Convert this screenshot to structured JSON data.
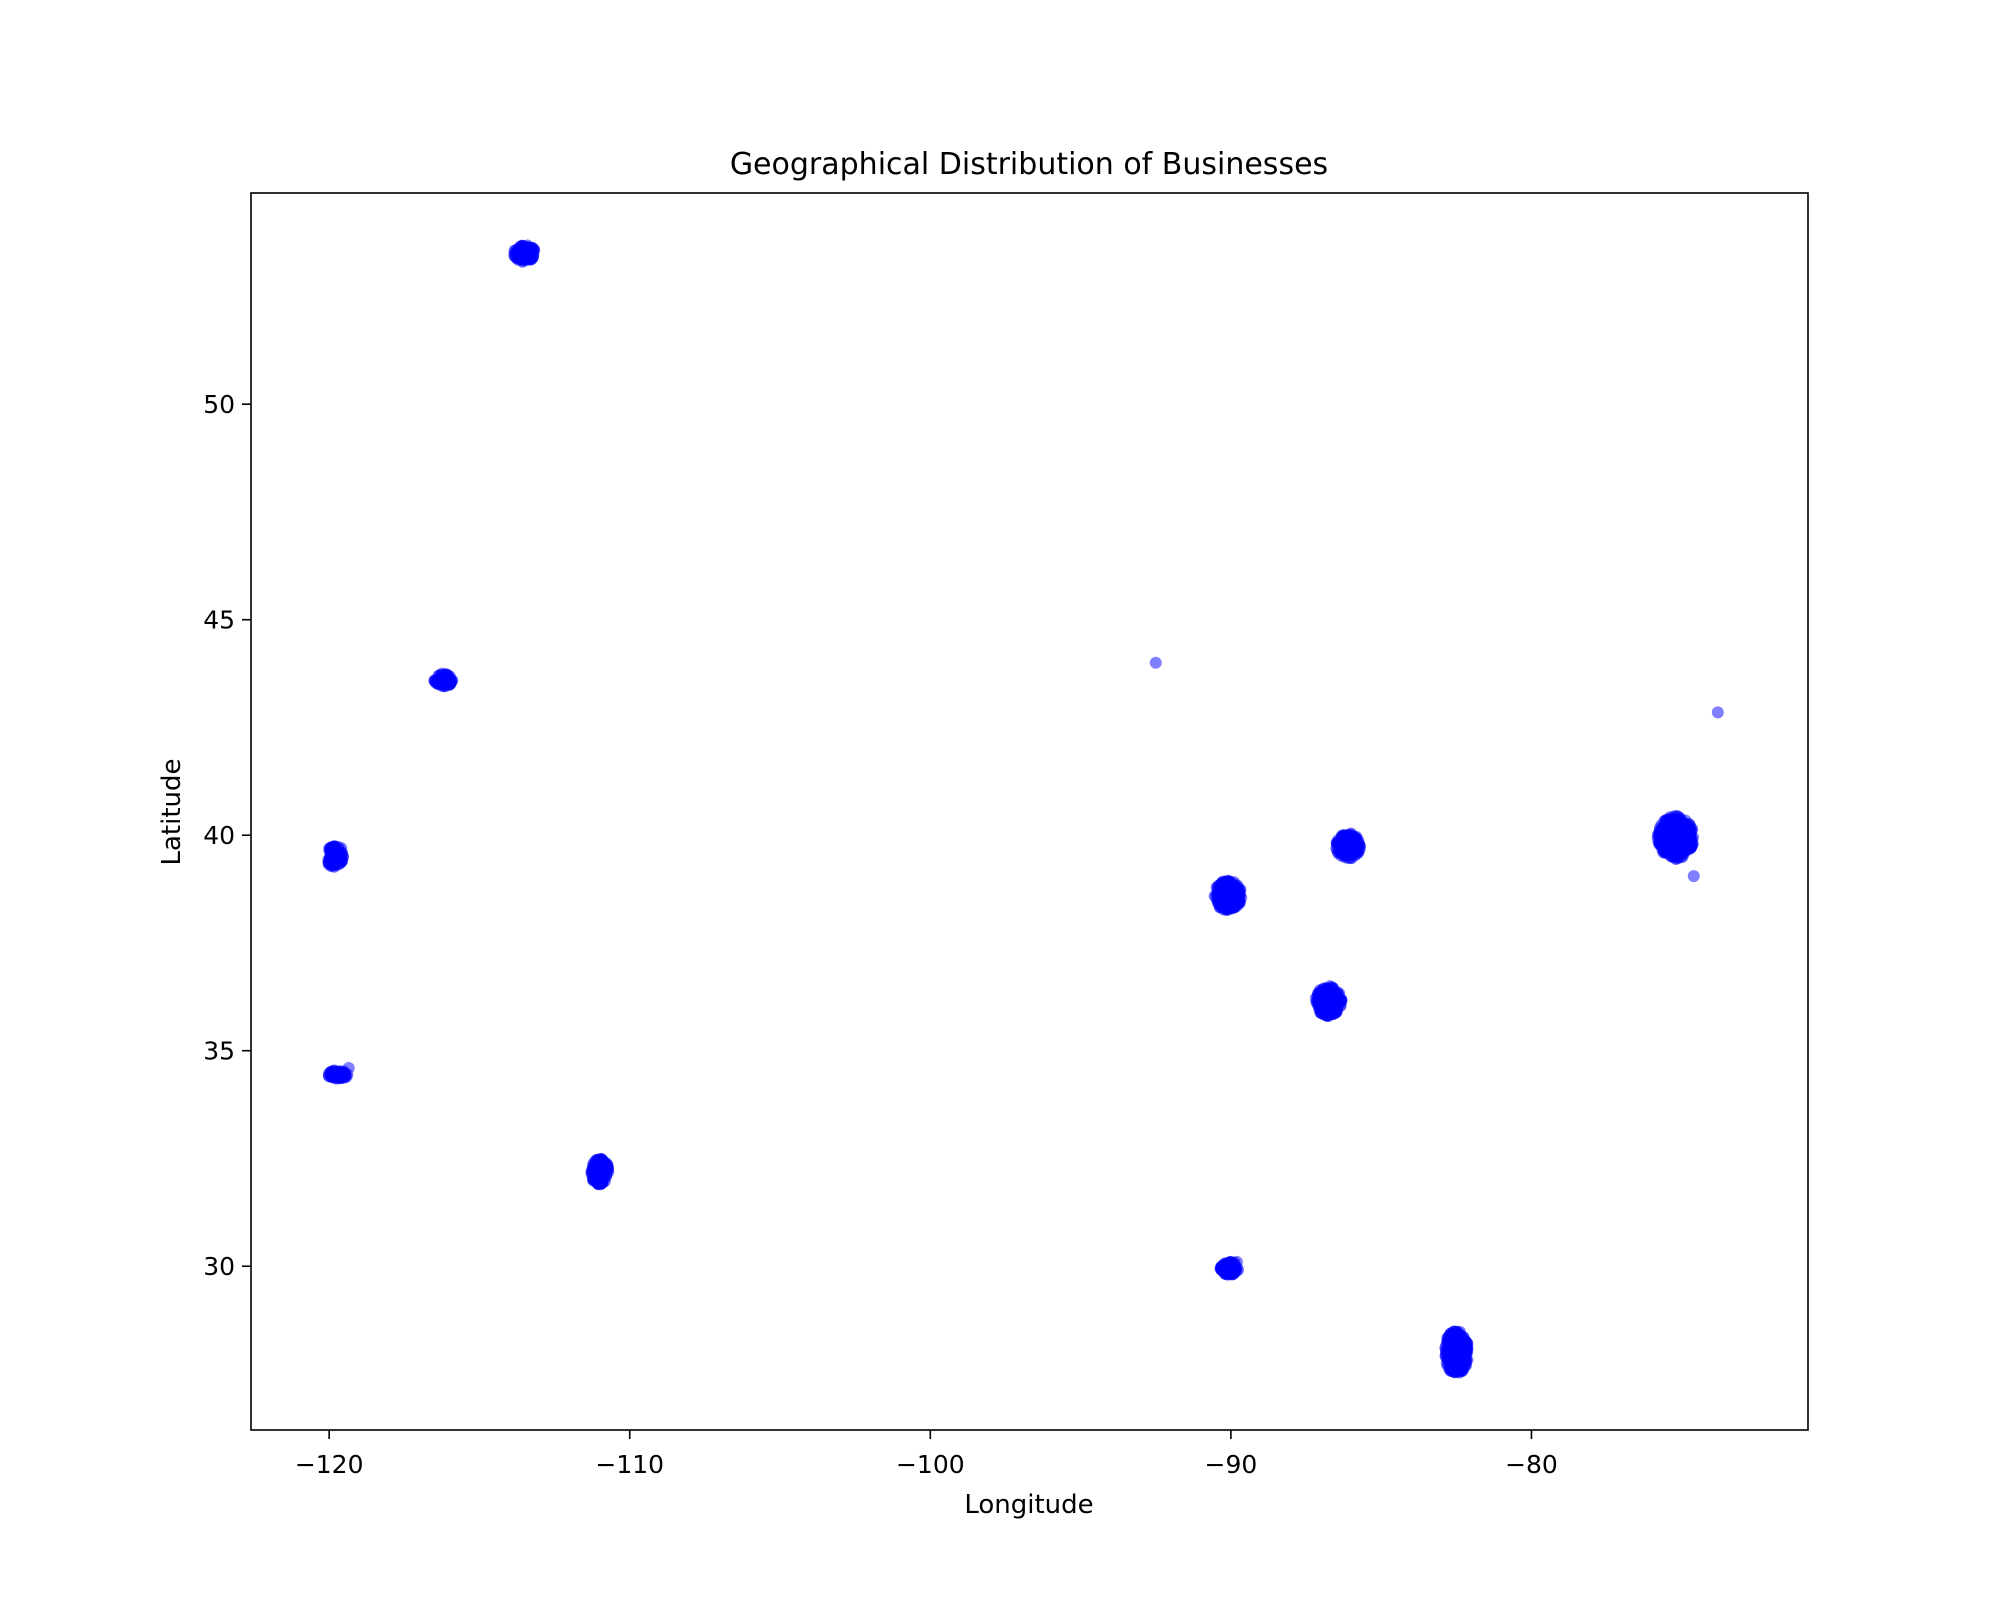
{
  "chart_data": {
    "type": "scatter",
    "title": "Geographical Distribution of Businesses",
    "xlabel": "Longitude",
    "ylabel": "Latitude",
    "xlim": [
      -122.6,
      -70.8
    ],
    "ylim": [
      26.2,
      54.9
    ],
    "xticks": [
      -120,
      -110,
      -100,
      -90,
      -80
    ],
    "xtick_labels": [
      "−120",
      "−110",
      "−100",
      "−90",
      "−80"
    ],
    "yticks": [
      30,
      35,
      40,
      45,
      50
    ],
    "ytick_labels": [
      "30",
      "35",
      "40",
      "45",
      "50"
    ],
    "grid": false,
    "legend": "none",
    "marker_color": "#0000ff",
    "marker_alpha": 0.5,
    "series": [
      {
        "clusters": [
          {
            "x": -113.5,
            "y": 53.5,
            "spread_x": 0.35,
            "spread_y": 0.2,
            "count": 120
          },
          {
            "x": -116.2,
            "y": 43.6,
            "spread_x": 0.3,
            "spread_y": 0.15,
            "count": 80
          },
          {
            "x": -119.8,
            "y": 39.5,
            "spread_x": 0.3,
            "spread_y": 0.25,
            "count": 90
          },
          {
            "x": -119.7,
            "y": 34.45,
            "spread_x": 0.35,
            "spread_y": 0.1,
            "count": 70
          },
          {
            "x": -111.0,
            "y": 32.2,
            "spread_x": 0.3,
            "spread_y": 0.3,
            "count": 130
          },
          {
            "x": -90.1,
            "y": 38.6,
            "spread_x": 0.45,
            "spread_y": 0.35,
            "count": 200
          },
          {
            "x": -90.05,
            "y": 29.95,
            "spread_x": 0.3,
            "spread_y": 0.15,
            "count": 90
          },
          {
            "x": -86.75,
            "y": 36.15,
            "spread_x": 0.45,
            "spread_y": 0.35,
            "count": 200
          },
          {
            "x": -86.1,
            "y": 39.75,
            "spread_x": 0.4,
            "spread_y": 0.3,
            "count": 180
          },
          {
            "x": -82.5,
            "y": 28.0,
            "spread_x": 0.4,
            "spread_y": 0.5,
            "count": 250
          },
          {
            "x": -75.2,
            "y": 39.95,
            "spread_x": 0.6,
            "spread_y": 0.5,
            "count": 300
          }
        ],
        "points": [
          {
            "x": -92.5,
            "y": 44.0
          },
          {
            "x": -73.8,
            "y": 42.85
          },
          {
            "x": -74.6,
            "y": 39.05
          },
          {
            "x": -119.35,
            "y": 34.6
          },
          {
            "x": -89.8,
            "y": 30.1
          },
          {
            "x": -119.6,
            "y": 39.7
          }
        ]
      }
    ]
  }
}
